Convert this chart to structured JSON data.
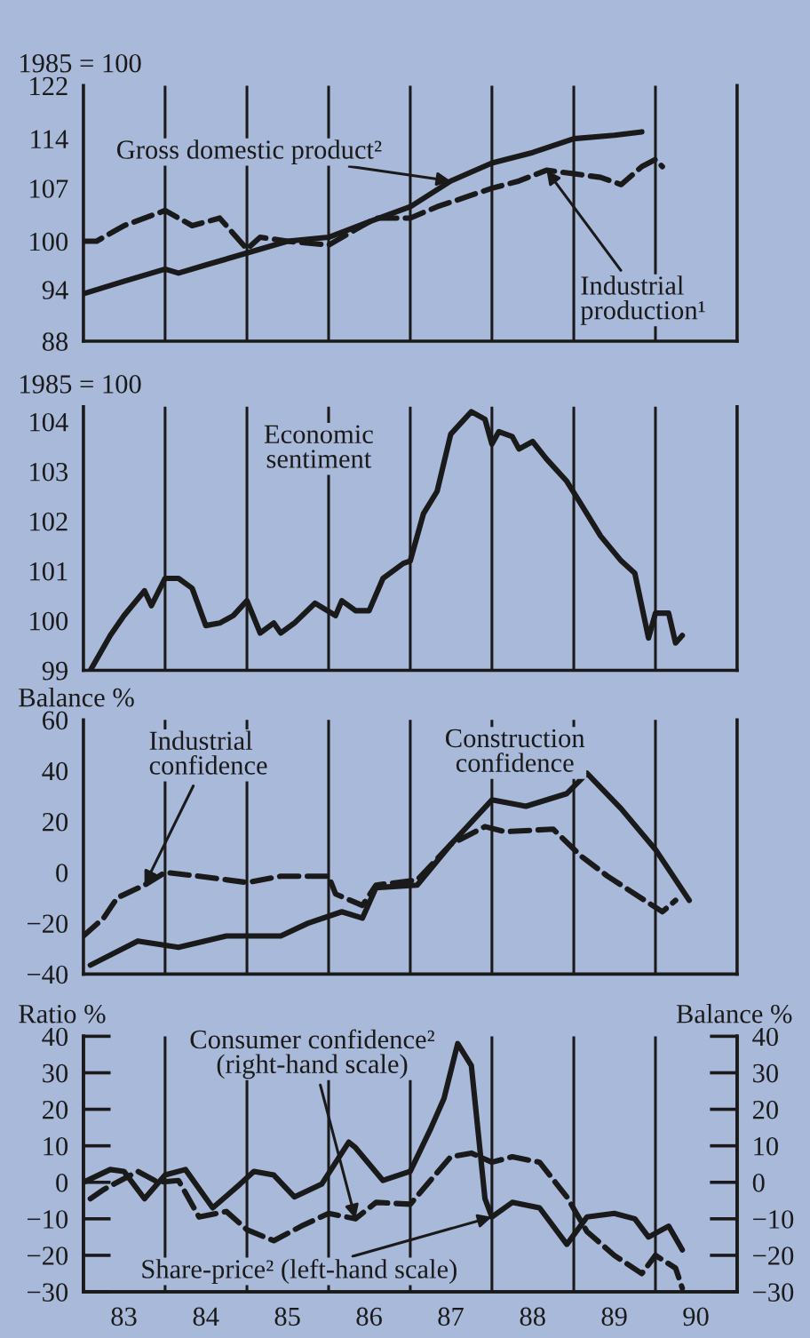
{
  "chart_data": [
    {
      "type": "line",
      "ylabel": "1985 = 100",
      "log": "y",
      "xlim": [
        "1983-01",
        "1991-01"
      ],
      "ylim": [
        88,
        122
      ],
      "yticks": [
        88,
        94,
        100,
        107,
        114,
        122
      ],
      "tick_labels": "y",
      "ref_lines": [
        {
          "axis": "x",
          "value": "1984-01",
          "color": "#1a1a1a"
        },
        {
          "axis": "x",
          "value": "1985-01",
          "color": "#1a1a1a"
        },
        {
          "axis": "x",
          "value": "1986-01",
          "color": "#1a1a1a"
        },
        {
          "axis": "x",
          "value": "1987-01",
          "color": "#1a1a1a"
        },
        {
          "axis": "x",
          "value": "1988-01",
          "color": "#1a1a1a"
        },
        {
          "axis": "x",
          "value": "1989-01",
          "color": "#1a1a1a"
        },
        {
          "axis": "x",
          "value": "1990-01",
          "color": "#1a1a1a"
        }
      ],
      "series": [
        {
          "name": "Gross domestic product²",
          "color": "#1a1a1a",
          "line_style": "solid",
          "x": [
            "1983-01",
            "1983-07",
            "1984-01",
            "1984-03",
            "1984-07",
            "1985-01",
            "1985-07",
            "1986-01",
            "1986-07",
            "1987-01",
            "1987-07",
            "1988-01",
            "1988-07",
            "1989-01",
            "1989-07",
            "1989-11"
          ],
          "values": [
            93.5,
            95,
            96.5,
            96,
            97,
            98.5,
            100,
            100.5,
            102.5,
            104.5,
            108,
            110.5,
            112,
            114,
            114.5,
            115
          ]
        },
        {
          "name": "Industrial\nproduction¹",
          "color": "#1a1a1a",
          "line_style": "dashed",
          "x": [
            "1983-01",
            "1983-03",
            "1983-07",
            "1984-01",
            "1984-05",
            "1984-09",
            "1985-01",
            "1985-03",
            "1985-07",
            "1986-01",
            "1986-05",
            "1986-08",
            "1987-01",
            "1987-05",
            "1988-01",
            "1988-05",
            "1988-09",
            "1989-01",
            "1989-05",
            "1989-08",
            "1989-11",
            "1990-01",
            "1990-02"
          ],
          "values": [
            100,
            100,
            102,
            104,
            102,
            103,
            99,
            100.5,
            100,
            99.5,
            101.5,
            103,
            103,
            104.5,
            107,
            108,
            109.5,
            109,
            108.5,
            107.5,
            110,
            111,
            110
          ]
        }
      ]
    },
    {
      "type": "line",
      "ylabel": "1985 = 100",
      "xlim": [
        "1983-01",
        "1991-01"
      ],
      "ylim": [
        99,
        104.3
      ],
      "yticks": [
        99,
        100,
        101,
        102,
        103,
        104
      ],
      "tick_labels": "y",
      "ref_lines": [
        {
          "axis": "x",
          "value": "1984-01",
          "color": "#1a1a1a"
        },
        {
          "axis": "x",
          "value": "1985-01",
          "color": "#1a1a1a"
        },
        {
          "axis": "x",
          "value": "1986-01",
          "color": "#1a1a1a"
        },
        {
          "axis": "x",
          "value": "1987-01",
          "color": "#1a1a1a"
        },
        {
          "axis": "x",
          "value": "1988-01",
          "color": "#1a1a1a"
        },
        {
          "axis": "x",
          "value": "1989-01",
          "color": "#1a1a1a"
        },
        {
          "axis": "x",
          "value": "1990-01",
          "color": "#1a1a1a"
        }
      ],
      "series": [
        {
          "name": "Economic\nsentiment",
          "color": "#1a1a1a",
          "line_style": "solid",
          "x": [
            "1983-02",
            "1983-05",
            "1983-07",
            "1983-10",
            "1983-11",
            "1984-01",
            "1984-03",
            "1984-05",
            "1984-07",
            "1984-09",
            "1984-11",
            "1985-01",
            "1985-03",
            "1985-05",
            "1985-06",
            "1985-08",
            "1985-11",
            "1986-02",
            "1986-03",
            "1986-05",
            "1986-07",
            "1986-09",
            "1986-12",
            "1987-01",
            "1987-03",
            "1987-05",
            "1987-07",
            "1987-10",
            "1987-12",
            "1988-01",
            "1988-02",
            "1988-04",
            "1988-05",
            "1988-07",
            "1988-09",
            "1988-12",
            "1989-02",
            "1989-05",
            "1989-08",
            "1989-10",
            "1989-12",
            "1990-01",
            "1990-03",
            "1990-04",
            "1990-05"
          ],
          "values": [
            99.0,
            99.7,
            100.1,
            100.6,
            100.3,
            100.85,
            100.85,
            100.65,
            99.9,
            99.95,
            100.1,
            100.4,
            99.75,
            99.95,
            99.75,
            99.95,
            100.35,
            100.1,
            100.4,
            100.2,
            100.2,
            100.85,
            101.15,
            101.2,
            102.15,
            102.6,
            103.75,
            104.2,
            104.05,
            103.55,
            103.8,
            103.7,
            103.45,
            103.6,
            103.25,
            102.8,
            102.35,
            101.7,
            101.2,
            100.95,
            99.65,
            100.15,
            100.15,
            99.55,
            99.7
          ]
        }
      ]
    },
    {
      "type": "line",
      "ylabel": "Balance %",
      "xlim": [
        "1983-01",
        "1991-01"
      ],
      "ylim": [
        -40,
        60
      ],
      "yticks": [
        -40,
        -20,
        0,
        20,
        40,
        60
      ],
      "tick_labels": "y",
      "ref_lines": [
        {
          "axis": "x",
          "value": "1984-01",
          "color": "#1a1a1a"
        },
        {
          "axis": "x",
          "value": "1985-01",
          "color": "#1a1a1a"
        },
        {
          "axis": "x",
          "value": "1986-01",
          "color": "#1a1a1a"
        },
        {
          "axis": "x",
          "value": "1987-01",
          "color": "#1a1a1a"
        },
        {
          "axis": "x",
          "value": "1988-01",
          "color": "#1a1a1a"
        },
        {
          "axis": "x",
          "value": "1989-01",
          "color": "#1a1a1a"
        },
        {
          "axis": "x",
          "value": "1990-01",
          "color": "#1a1a1a"
        }
      ],
      "series": [
        {
          "name": "Industrial\nconfidence",
          "color": "#1a1a1a",
          "line_style": "dashed",
          "x": [
            "1983-01",
            "1983-04",
            "1983-06",
            "1983-10",
            "1984-01",
            "1984-06",
            "1985-01",
            "1985-06",
            "1986-01",
            "1986-02",
            "1986-06",
            "1986-08",
            "1987-02",
            "1987-07",
            "1987-12",
            "1988-03",
            "1988-10",
            "1989-02",
            "1989-06",
            "1989-12",
            "1990-02",
            "1990-04"
          ],
          "values": [
            -25,
            -18,
            -10,
            -5,
            0,
            -1.5,
            -4,
            -1.5,
            -1.5,
            -8.5,
            -13,
            -5,
            -3,
            11,
            18,
            16,
            17,
            6.5,
            -1.5,
            -12,
            -15.5,
            -11
          ]
        },
        {
          "name": "Construction\nconfidence",
          "color": "#1a1a1a",
          "line_style": "solid",
          "x": [
            "1983-02",
            "1983-09",
            "1984-03",
            "1984-10",
            "1985-06",
            "1985-10",
            "1986-03",
            "1986-06",
            "1986-08",
            "1987-02",
            "1987-07",
            "1988-01",
            "1988-06",
            "1988-12",
            "1989-03",
            "1989-08",
            "1990-01",
            "1990-06"
          ],
          "values": [
            -36.5,
            -27,
            -29.5,
            -25,
            -25,
            -20,
            -15.5,
            -18,
            -6,
            -5,
            11,
            28.5,
            26,
            31,
            39,
            25,
            9,
            -11
          ]
        }
      ]
    },
    {
      "type": "line",
      "ylabel": "Ratio %",
      "y2label": "Balance %",
      "xlim": [
        "1983-01",
        "1991-01"
      ],
      "ylim": [
        -30,
        40
      ],
      "yticks": [
        -30,
        -20,
        -10,
        0,
        10,
        20,
        30,
        40
      ],
      "y2lim": [
        -30,
        40
      ],
      "y2ticks": [
        -30,
        -20,
        -10,
        0,
        10,
        20,
        30,
        40
      ],
      "xticks": [
        {
          "value": "1983-07",
          "label": "83"
        },
        {
          "value": "1984-07",
          "label": "84"
        },
        {
          "value": "1985-07",
          "label": "85"
        },
        {
          "value": "1986-07",
          "label": "86"
        },
        {
          "value": "1987-07",
          "label": "87"
        },
        {
          "value": "1988-07",
          "label": "88"
        },
        {
          "value": "1989-07",
          "label": "89"
        },
        {
          "value": "1990-07",
          "label": "90"
        }
      ],
      "ref_lines": [
        {
          "axis": "x",
          "value": "1984-01",
          "color": "#1a1a1a"
        },
        {
          "axis": "x",
          "value": "1985-01",
          "color": "#1a1a1a"
        },
        {
          "axis": "x",
          "value": "1986-01",
          "color": "#1a1a1a"
        },
        {
          "axis": "x",
          "value": "1987-01",
          "color": "#1a1a1a"
        },
        {
          "axis": "x",
          "value": "1988-01",
          "color": "#1a1a1a"
        },
        {
          "axis": "x",
          "value": "1989-01",
          "color": "#1a1a1a"
        },
        {
          "axis": "x",
          "value": "1990-01",
          "color": "#1a1a1a"
        }
      ],
      "series": [
        {
          "name": "Consumer confidence²\n(right-hand scale)",
          "axis": "y2",
          "color": "#1a1a1a",
          "line_style": "dashed",
          "x": [
            "1983-02",
            "1983-04",
            "1983-09",
            "1983-12",
            "1984-03",
            "1984-06",
            "1984-10",
            "1985-01",
            "1985-05",
            "1985-09",
            "1986-01",
            "1986-05",
            "1986-08",
            "1987-01",
            "1987-04",
            "1987-07",
            "1987-10",
            "1988-01",
            "1988-04",
            "1988-08",
            "1988-12",
            "1989-03",
            "1989-07",
            "1989-11",
            "1990-01",
            "1990-04",
            "1990-05"
          ],
          "values": [
            -4.5,
            -2,
            3,
            0,
            0.5,
            -9.5,
            -8,
            -13,
            -16,
            -12,
            -8.5,
            -10,
            -5.5,
            -6,
            0.5,
            7,
            8,
            5.5,
            7,
            5.5,
            -4,
            -13.5,
            -20,
            -25,
            -20,
            -23.5,
            -29
          ]
        },
        {
          "name": "Share-price² (left-hand scale)",
          "color": "#1a1a1a",
          "line_style": "solid",
          "x": [
            "1983-01",
            "1983-05",
            "1983-07",
            "1983-10",
            "1984-01",
            "1984-04",
            "1984-08",
            "1984-12",
            "1985-02",
            "1985-05",
            "1985-08",
            "1985-12",
            "1986-04",
            "1986-05",
            "1986-09",
            "1987-01",
            "1987-04",
            "1987-06",
            "1987-08",
            "1987-10",
            "1987-12",
            "1988-01",
            "1988-04",
            "1988-08",
            "1988-12",
            "1989-03",
            "1989-07",
            "1989-10",
            "1989-12",
            "1990-03",
            "1990-05"
          ],
          "values": [
            0,
            3.5,
            3,
            -4.5,
            2,
            3.5,
            -7,
            -0.5,
            3,
            2,
            -4,
            -0.5,
            11,
            9.5,
            0.5,
            3,
            14.5,
            23,
            38,
            32,
            -4.5,
            -9.5,
            -5.5,
            -7,
            -17,
            -9.5,
            -8.5,
            -10,
            -15,
            -12,
            -18.5
          ]
        }
      ]
    }
  ]
}
